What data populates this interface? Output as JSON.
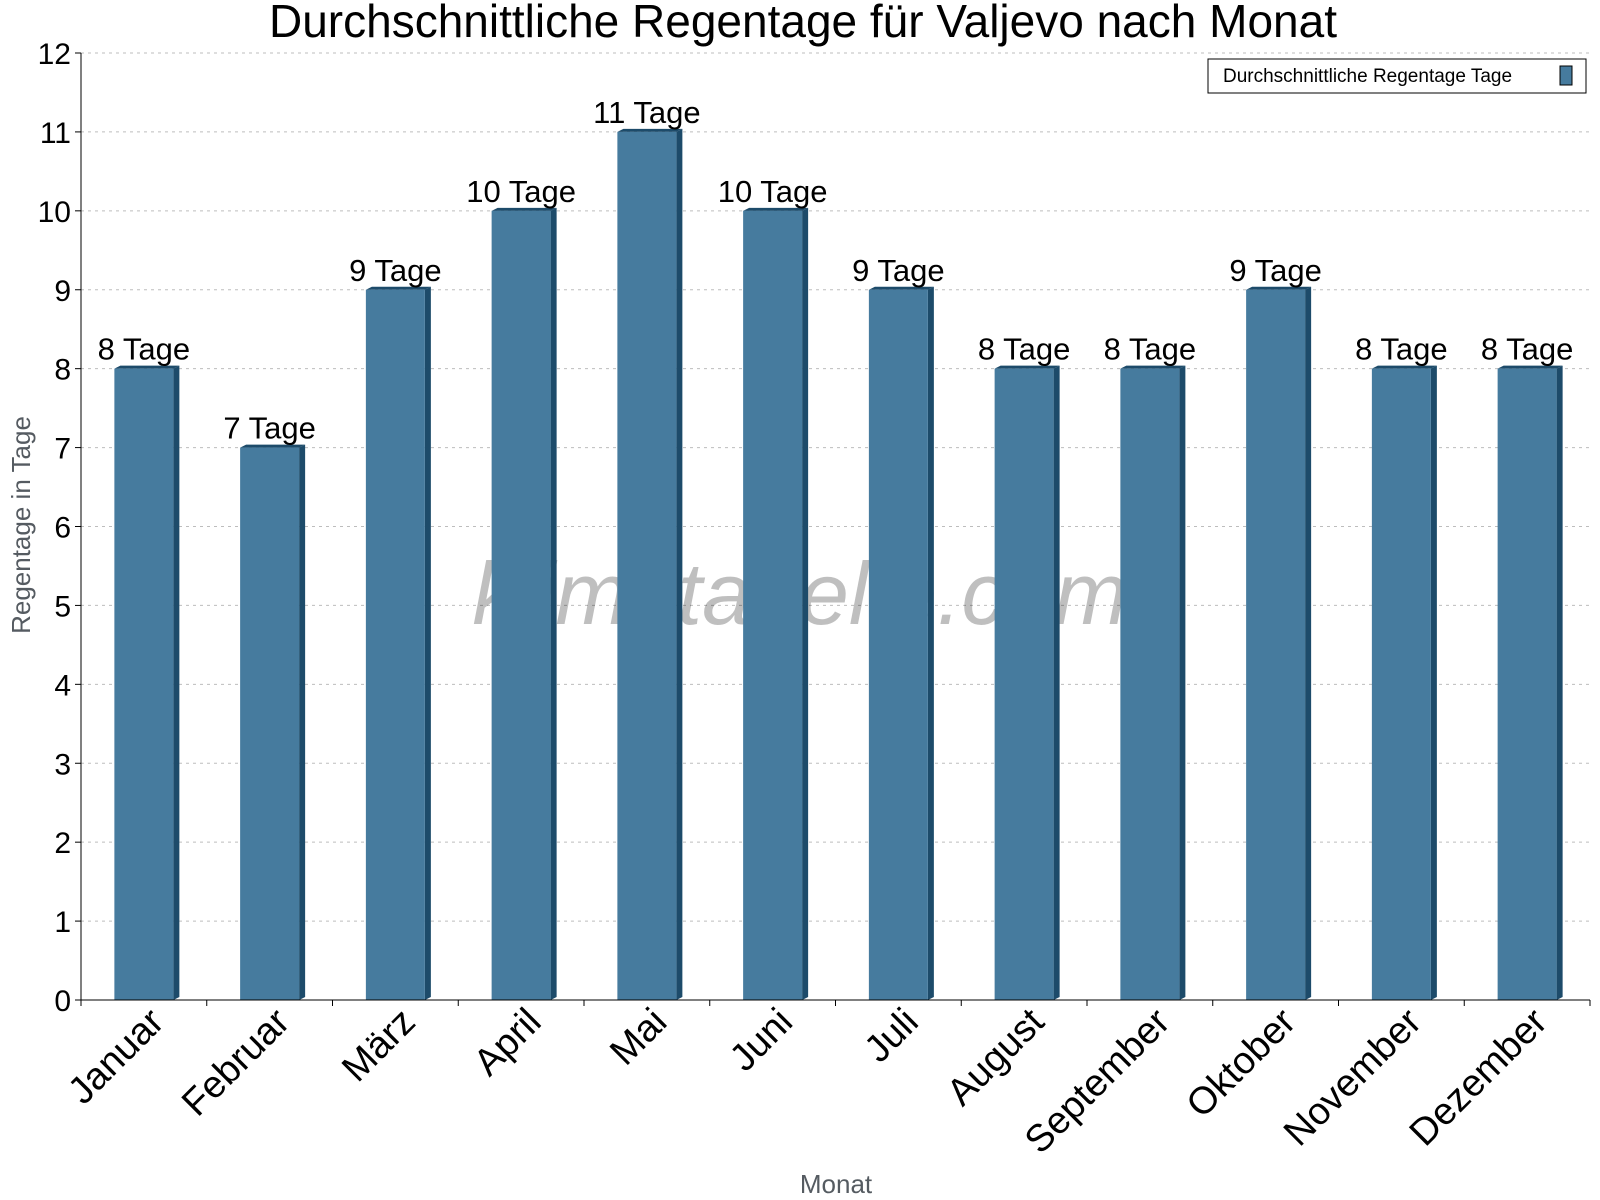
{
  "watermark": "klimatabelle.com",
  "colors": {
    "bar_front": "#467b9e",
    "bar_side": "#1d4b6a",
    "bar_top": "#1d4b6a",
    "grid": "#bdbdbd",
    "axis": "#000000",
    "axis_title": "#555b61"
  },
  "chart_data": {
    "type": "bar",
    "title": "Durchschnittliche Regentage für Valjevo nach Monat",
    "xlabel": "Monat",
    "ylabel": "Regentage in Tage",
    "ylim": [
      0,
      12
    ],
    "yticks": [
      "0",
      "1",
      "2",
      "3",
      "4",
      "5",
      "6",
      "7",
      "8",
      "9",
      "10",
      "11",
      "12"
    ],
    "grid": true,
    "legend_position": "top-right",
    "categories": [
      "Januar",
      "Februar",
      "März",
      "April",
      "Mai",
      "Juni",
      "Juli",
      "August",
      "September",
      "Oktober",
      "November",
      "Dezember"
    ],
    "series": [
      {
        "name": "Durchschnittliche Regentage Tage",
        "values": [
          8,
          7,
          9,
          10,
          11,
          10,
          9,
          8,
          8,
          9,
          8,
          8
        ],
        "labels": [
          "8 Tage",
          "7 Tage",
          "9 Tage",
          "10 Tage",
          "11 Tage",
          "10 Tage",
          "9 Tage",
          "8 Tage",
          "8 Tage",
          "9 Tage",
          "8 Tage",
          "8 Tage"
        ]
      }
    ]
  }
}
